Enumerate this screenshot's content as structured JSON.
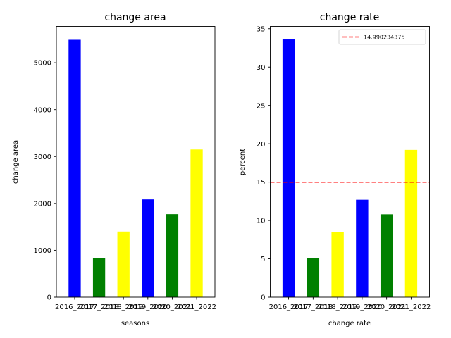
{
  "chart_data": [
    {
      "type": "bar",
      "title": "change area",
      "xlabel": "seasons",
      "ylabel": "change area",
      "categories": [
        "2016_2017",
        "2017_2018",
        "2018_2019",
        "2019_2020",
        "2020_2021",
        "2021_2022"
      ],
      "values": [
        5490,
        840,
        1400,
        2085,
        1770,
        3150
      ],
      "colors": [
        "#0000ff",
        "#008000",
        "#ffff00",
        "#0000ff",
        "#008000",
        "#ffff00"
      ],
      "ylim": [
        0,
        5775
      ],
      "yticks": [
        0,
        1000,
        2000,
        3000,
        4000,
        5000
      ],
      "grid": false
    },
    {
      "type": "bar",
      "title": "change rate",
      "xlabel": "change rate",
      "ylabel": "percent",
      "categories": [
        "2016_2017",
        "2017_2018",
        "2018_2019",
        "2019_2020",
        "2020_2021",
        "2021_2022"
      ],
      "values": [
        33.6,
        5.1,
        8.5,
        12.7,
        10.8,
        19.2
      ],
      "colors": [
        "#0000ff",
        "#008000",
        "#ffff00",
        "#0000ff",
        "#008000",
        "#ffff00"
      ],
      "ylim": [
        0,
        35.3
      ],
      "yticks": [
        0,
        5,
        10,
        15,
        20,
        25,
        30,
        35
      ],
      "grid": false,
      "hline": {
        "value": 14.990234375,
        "label": "14.990234375",
        "color": "#ff0000",
        "style": "dashed"
      },
      "legend": {
        "placement": "top-right"
      }
    }
  ]
}
